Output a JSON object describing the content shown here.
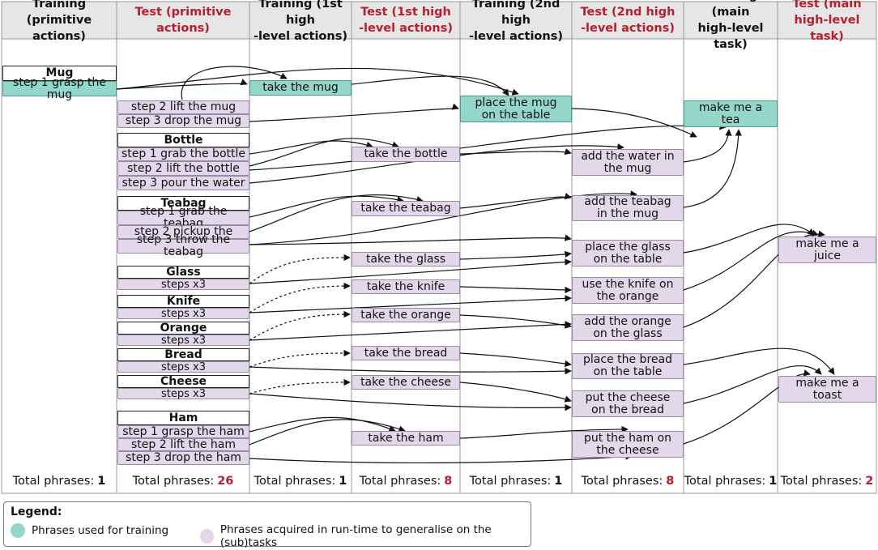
{
  "columns": [
    {
      "title": "Training (primitive\nactions)",
      "kind": "train",
      "total_label": "Total phrases:",
      "total": "1"
    },
    {
      "title": "Test (primitive\nactions)",
      "kind": "test",
      "total_label": "Total phrases:",
      "total": "26"
    },
    {
      "title": "Training (1st high\n-level actions)",
      "kind": "train",
      "total_label": "Total phrases:",
      "total": "1"
    },
    {
      "title": "Test (1st high\n-level actions)",
      "kind": "test",
      "total_label": "Total phrases:",
      "total": "8"
    },
    {
      "title": "Training (2nd high\n-level actions)",
      "kind": "train",
      "total_label": "Total phrases:",
      "total": "1"
    },
    {
      "title": "Test (2nd high\n-level actions)",
      "kind": "test",
      "total_label": "Total phrases:",
      "total": "8"
    },
    {
      "title": "Training (main\nhigh-level task)",
      "kind": "train",
      "total_label": "Total phrases:",
      "total": "1"
    },
    {
      "title": "Test (main\nhigh-level task)",
      "kind": "test",
      "total_label": "Total phrases:",
      "total": "2"
    }
  ],
  "primitive_training": {
    "header": "Mug",
    "step": "step 1 grasp the mug"
  },
  "primitive_test": {
    "mug_steps": [
      "step 2 lift the mug",
      "step 3 drop the mug"
    ],
    "bottle": {
      "header": "Bottle",
      "steps": [
        "step 1 grab the bottle",
        "step 2 lift the bottle",
        "step 3 pour the water"
      ]
    },
    "teabag": {
      "header": "Teabag",
      "steps": [
        "step 1 grab the teabag",
        "step 2 pickup the",
        "step 3 throw the teabag"
      ]
    },
    "glass": {
      "header": "Glass",
      "steps": "steps x3"
    },
    "knife": {
      "header": "Knife",
      "steps": "steps x3"
    },
    "orange": {
      "header": "Orange",
      "steps": "steps x3"
    },
    "bread": {
      "header": "Bread",
      "steps": "steps x3"
    },
    "cheese": {
      "header": "Cheese",
      "steps": "steps x3"
    },
    "ham": {
      "header": "Ham",
      "steps": [
        "step 1 grasp the ham",
        "step 2 lift the ham",
        "step 3 drop the ham"
      ]
    }
  },
  "first_level_training": [
    "take the mug"
  ],
  "first_level_test": [
    "take the bottle",
    "take the teabag",
    "take the glass",
    "take the knife",
    "take the orange",
    "take the bread",
    "take the cheese",
    "take the ham"
  ],
  "second_level_training": [
    "place the mug\non the table"
  ],
  "second_level_test": [
    "add the water in\nthe mug",
    "add the teabag\nin the mug",
    "place the glass\non the table",
    "use the knife on\nthe orange",
    "add the orange\non the glass",
    "place the bread\non the table",
    "put the cheese\non the bread",
    "put the ham on\nthe cheese"
  ],
  "main_training": [
    "make me a\ntea"
  ],
  "main_test": [
    "make me a\njuice",
    "make me a\ntoast"
  ],
  "legend": {
    "title": "Legend:",
    "training": "Phrases used for training",
    "runtime": "Phrases acquired in run-time to generalise on the (sub)tasks"
  },
  "colors": {
    "training": "#94d6c9",
    "runtime": "#e3d8ea",
    "test_header": "#b51f2f"
  }
}
